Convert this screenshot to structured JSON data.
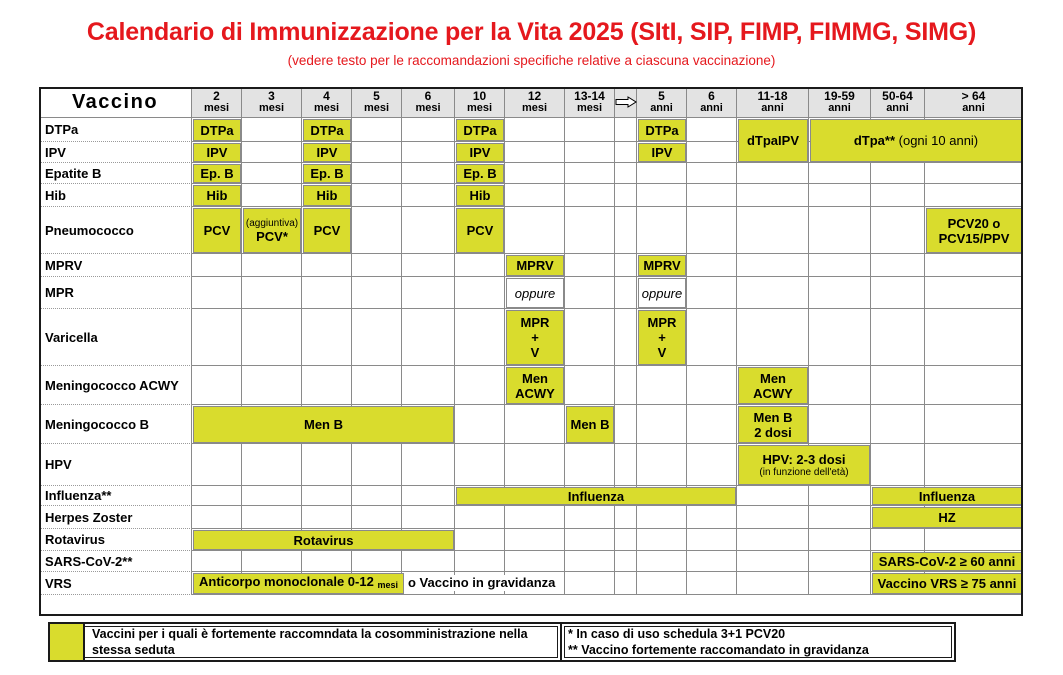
{
  "title": "Calendario di Immunizzazione per la Vita 2025 (SItI, SIP, FIMP, FIMMG, SIMG)",
  "subtitle": "(vedere testo per le raccomandazioni specifiche relative a ciascuna vaccinazione)",
  "header": {
    "vaccine_label": "Vaccino",
    "columns": [
      {
        "age": "2",
        "unit": "mesi"
      },
      {
        "age": "3",
        "unit": "mesi"
      },
      {
        "age": "4",
        "unit": "mesi"
      },
      {
        "age": "5",
        "unit": "mesi"
      },
      {
        "age": "6",
        "unit": "mesi"
      },
      {
        "age": "10",
        "unit": "mesi"
      },
      {
        "age": "12",
        "unit": "mesi"
      },
      {
        "age": "13-14",
        "unit": "mesi"
      },
      {
        "age": "",
        "unit": "",
        "icon": "arrow-right-icon"
      },
      {
        "age": "5",
        "unit": "anni"
      },
      {
        "age": "6",
        "unit": "anni"
      },
      {
        "age": "11-18",
        "unit": "anni"
      },
      {
        "age": "19-59",
        "unit": "anni"
      },
      {
        "age": "50-64",
        "unit": "anni"
      },
      {
        "age": "> 64",
        "unit": "anni"
      }
    ]
  },
  "vaccines": [
    "DTPa",
    "IPV",
    "Epatite B",
    "Hib",
    "Pneumococco",
    "MPRV",
    "MPR",
    "Varicella",
    "Meningococco ACWY",
    "Meningococco B",
    "HPV",
    "Influenza**",
    "Herpes Zoster",
    "Rotavirus",
    "SARS-CoV-2**",
    "VRS"
  ],
  "cells": {
    "dtpa": "DTPa",
    "ipv": "IPV",
    "epb": "Ep. B",
    "hib": "Hib",
    "pcv": "PCV",
    "pcv_aggiuntiva_note": "(aggiuntiva)",
    "pcv_star": "PCV*",
    "dtpaipv": "dTpaIPV",
    "dtpa_adult": "dTpa**",
    "dtpa_adult_note": "(ogni 10 anni)",
    "pcv20_line1": "PCV20 o",
    "pcv20_line2": "PCV15/PPV",
    "mprv": "MPRV",
    "oppure": "oppure",
    "mpr_v_line1": "MPR",
    "mpr_v_line2": "+",
    "mpr_v_line3": "V",
    "men_line1": "Men",
    "men_line2": "ACWY",
    "menb": "Men B",
    "menb_2dosi_line1": "Men B",
    "menb_2dosi_line2": "2 dosi",
    "hpv": "HPV: 2-3 dosi",
    "hpv_note": "(in funzione dell'età)",
    "influenza": "Influenza",
    "hz": "HZ",
    "rotavirus": "Rotavirus",
    "sars": "SARS-CoV-2 ≥ 60 anni",
    "vrs_anticorpo": "Anticorpo monoclonale 0-12",
    "vrs_anticorpo_unit": "mesi",
    "vrs_gravidanza": "o Vaccino in gravidanza",
    "vrs_anziani": "Vaccino VRS ≥ 75 anni"
  },
  "legend": {
    "cosomministrazione": "Vaccini per i quali è fortemente raccomndata la cosomministrazione nella stessa seduta",
    "note1": "*   In caso di uso schedula 3+1 PCV20",
    "note2": "** Vaccino fortemente raccomandato in gravidanza"
  },
  "colors": {
    "highlight": "#d9dc2d",
    "title": "#e5181d",
    "header_bg": "#e3e3e3"
  }
}
